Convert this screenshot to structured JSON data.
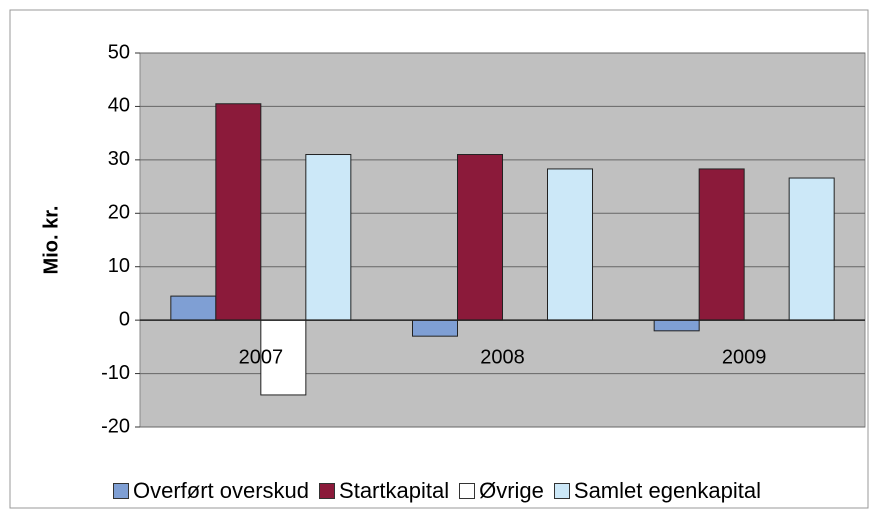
{
  "chart_data": {
    "type": "bar",
    "y_label": "Mio. kr.",
    "categories": [
      "2007",
      "2008",
      "2009"
    ],
    "series": [
      {
        "name": "Overført overskud",
        "color": "#7f9fd4",
        "values": [
          4.5,
          -3,
          -2
        ]
      },
      {
        "name": "Startkapital",
        "color": "#8b1a3a",
        "values": [
          40.5,
          31,
          28.3
        ]
      },
      {
        "name": "Øvrige",
        "color": "#ffffff",
        "values": [
          -14,
          0,
          0
        ]
      },
      {
        "name": "Samlet egenkapital",
        "color": "#cce8f8",
        "values": [
          31,
          28.3,
          26.6
        ]
      }
    ],
    "ylim": [
      -20,
      50
    ],
    "yticks": [
      -20,
      -10,
      0,
      10,
      20,
      30,
      40,
      50
    ],
    "grid": true,
    "legend": "bottom"
  }
}
